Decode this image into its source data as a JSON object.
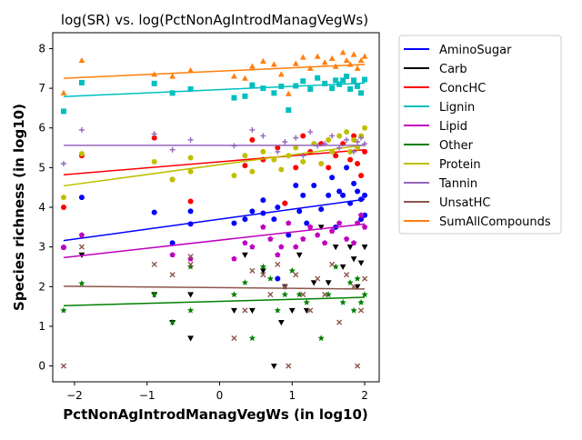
{
  "chart_data": {
    "type": "scatter",
    "title": "log(SR) vs. log(PctNonAgIntrodManagVegWs)",
    "xlabel": "PctNonAgIntrodManagVegWs (in log10)",
    "ylabel": "Species richness (in log10)",
    "xlim": [
      -2.3,
      2.2
    ],
    "ylim": [
      -0.4,
      8.4
    ],
    "xticks": [
      -2,
      -1,
      0,
      1,
      2
    ],
    "yticks": [
      0,
      1,
      2,
      3,
      4,
      5,
      6,
      7,
      8
    ],
    "grid": false,
    "legend_position": "outside-right",
    "series": [
      {
        "name": "AminoSugar",
        "color": "#0000ff",
        "marker": "circle",
        "fit": [
          3.16,
          4.2
        ],
        "points": [
          [
            -2.15,
            2.99
          ],
          [
            -1.9,
            4.25
          ],
          [
            -0.9,
            3.87
          ],
          [
            -0.65,
            3.1
          ],
          [
            -0.4,
            3.58
          ],
          [
            -0.4,
            3.9
          ],
          [
            0.2,
            3.6
          ],
          [
            0.35,
            3.7
          ],
          [
            0.45,
            3.9
          ],
          [
            0.6,
            3.85
          ],
          [
            0.6,
            4.18
          ],
          [
            0.75,
            3.7
          ],
          [
            0.8,
            4.0
          ],
          [
            0.8,
            2.2
          ],
          [
            0.9,
            4.1
          ],
          [
            0.95,
            3.3
          ],
          [
            1.05,
            4.55
          ],
          [
            1.1,
            3.9
          ],
          [
            1.15,
            4.3
          ],
          [
            1.2,
            3.6
          ],
          [
            1.3,
            4.55
          ],
          [
            1.4,
            3.95
          ],
          [
            1.5,
            4.3
          ],
          [
            1.55,
            4.75
          ],
          [
            1.6,
            3.5
          ],
          [
            1.65,
            4.4
          ],
          [
            1.7,
            4.3
          ],
          [
            1.75,
            5.0
          ],
          [
            1.8,
            4.1
          ],
          [
            1.85,
            4.6
          ],
          [
            1.9,
            4.4
          ],
          [
            1.95,
            3.7
          ],
          [
            1.95,
            4.2
          ],
          [
            2.0,
            3.8
          ],
          [
            2.0,
            4.3
          ]
        ]
      },
      {
        "name": "Carb",
        "color": "#000000",
        "marker": "triangle-down",
        "fit": [
          null,
          null
        ],
        "points": [
          [
            -1.9,
            2.8
          ],
          [
            -0.9,
            1.8
          ],
          [
            -0.65,
            1.1
          ],
          [
            -0.4,
            1.8
          ],
          [
            -0.4,
            0.7
          ],
          [
            0.2,
            1.4
          ],
          [
            0.35,
            2.8
          ],
          [
            0.45,
            1.4
          ],
          [
            0.6,
            2.4
          ],
          [
            0.75,
            0.0
          ],
          [
            0.85,
            1.1
          ],
          [
            0.9,
            2.0
          ],
          [
            1.0,
            1.4
          ],
          [
            1.1,
            2.8
          ],
          [
            1.2,
            1.4
          ],
          [
            1.3,
            2.1
          ],
          [
            1.4,
            3.5
          ],
          [
            1.5,
            2.1
          ],
          [
            1.6,
            3.0
          ],
          [
            1.7,
            2.5
          ],
          [
            1.8,
            3.0
          ],
          [
            1.85,
            2.7
          ],
          [
            1.9,
            2.0
          ],
          [
            1.95,
            2.6
          ],
          [
            2.0,
            3.0
          ]
        ]
      },
      {
        "name": "ConcHC",
        "color": "#ff0000",
        "marker": "circle",
        "fit": [
          4.82,
          5.45
        ],
        "points": [
          [
            -2.15,
            4.0
          ],
          [
            -1.9,
            5.3
          ],
          [
            -0.9,
            5.75
          ],
          [
            -0.65,
            4.7
          ],
          [
            -0.4,
            4.15
          ],
          [
            0.35,
            5.05
          ],
          [
            0.45,
            5.7
          ],
          [
            0.6,
            5.2
          ],
          [
            0.8,
            5.5
          ],
          [
            0.9,
            4.1
          ],
          [
            1.05,
            5.0
          ],
          [
            1.15,
            5.8
          ],
          [
            1.25,
            5.4
          ],
          [
            1.4,
            5.6
          ],
          [
            1.5,
            5.0
          ],
          [
            1.6,
            5.3
          ],
          [
            1.7,
            5.6
          ],
          [
            1.8,
            5.2
          ],
          [
            1.85,
            5.8
          ],
          [
            1.9,
            5.1
          ],
          [
            1.95,
            4.8
          ],
          [
            2.0,
            5.4
          ]
        ]
      },
      {
        "name": "Lignin",
        "color": "#00bfbf",
        "marker": "square",
        "fit": [
          6.79,
          7.13
        ],
        "points": [
          [
            -2.15,
            6.42
          ],
          [
            -1.9,
            7.14
          ],
          [
            -0.9,
            7.12
          ],
          [
            -0.65,
            6.88
          ],
          [
            -0.4,
            6.98
          ],
          [
            0.2,
            6.76
          ],
          [
            0.35,
            6.8
          ],
          [
            0.45,
            7.08
          ],
          [
            0.6,
            7.0
          ],
          [
            0.75,
            6.88
          ],
          [
            0.85,
            7.05
          ],
          [
            0.95,
            6.45
          ],
          [
            1.05,
            7.06
          ],
          [
            1.15,
            7.18
          ],
          [
            1.25,
            6.98
          ],
          [
            1.35,
            7.26
          ],
          [
            1.45,
            7.12
          ],
          [
            1.55,
            7.0
          ],
          [
            1.6,
            7.2
          ],
          [
            1.65,
            7.1
          ],
          [
            1.7,
            7.2
          ],
          [
            1.75,
            7.3
          ],
          [
            1.8,
            6.98
          ],
          [
            1.85,
            7.2
          ],
          [
            1.9,
            7.05
          ],
          [
            1.95,
            6.88
          ],
          [
            2.0,
            7.22
          ]
        ]
      },
      {
        "name": "Lipid",
        "color": "#bf00bf",
        "marker": "pentagon",
        "fit": [
          2.73,
          3.58
        ],
        "points": [
          [
            -2.15,
            2.99
          ],
          [
            -1.9,
            3.3
          ],
          [
            -0.65,
            2.8
          ],
          [
            -0.4,
            2.7
          ],
          [
            0.2,
            2.7
          ],
          [
            0.35,
            3.1
          ],
          [
            0.45,
            3.0
          ],
          [
            0.6,
            3.5
          ],
          [
            0.7,
            3.2
          ],
          [
            0.8,
            2.8
          ],
          [
            0.85,
            3.0
          ],
          [
            0.95,
            3.6
          ],
          [
            1.05,
            3.0
          ],
          [
            1.15,
            3.2
          ],
          [
            1.25,
            3.5
          ],
          [
            1.35,
            3.3
          ],
          [
            1.45,
            3.1
          ],
          [
            1.55,
            3.4
          ],
          [
            1.65,
            3.6
          ],
          [
            1.75,
            3.2
          ],
          [
            1.85,
            3.1
          ],
          [
            1.9,
            3.6
          ],
          [
            1.95,
            3.8
          ],
          [
            2.0,
            3.5
          ]
        ]
      },
      {
        "name": "Other",
        "color": "#008000",
        "marker": "star",
        "fit": [
          1.52,
          1.73
        ],
        "points": [
          [
            -2.15,
            1.4
          ],
          [
            -1.9,
            2.08
          ],
          [
            -0.9,
            1.8
          ],
          [
            -0.65,
            1.1
          ],
          [
            -0.4,
            1.4
          ],
          [
            -0.4,
            2.5
          ],
          [
            0.2,
            1.8
          ],
          [
            0.35,
            2.1
          ],
          [
            0.45,
            0.7
          ],
          [
            0.6,
            2.5
          ],
          [
            0.7,
            2.2
          ],
          [
            0.8,
            1.4
          ],
          [
            0.9,
            1.8
          ],
          [
            1.0,
            2.4
          ],
          [
            1.1,
            1.8
          ],
          [
            1.2,
            1.6
          ],
          [
            1.4,
            0.7
          ],
          [
            1.5,
            1.8
          ],
          [
            1.6,
            2.5
          ],
          [
            1.7,
            1.6
          ],
          [
            1.8,
            2.1
          ],
          [
            1.85,
            1.4
          ],
          [
            1.9,
            2.2
          ],
          [
            1.95,
            1.6
          ],
          [
            2.0,
            1.8
          ]
        ]
      },
      {
        "name": "Protein",
        "color": "#bfbf00",
        "marker": "circle",
        "fit": [
          4.54,
          5.57
        ],
        "points": [
          [
            -2.15,
            4.25
          ],
          [
            -1.9,
            5.35
          ],
          [
            -0.9,
            5.15
          ],
          [
            -0.65,
            4.7
          ],
          [
            -0.4,
            5.25
          ],
          [
            -0.4,
            4.9
          ],
          [
            0.2,
            4.8
          ],
          [
            0.35,
            5.3
          ],
          [
            0.45,
            4.9
          ],
          [
            0.6,
            5.4
          ],
          [
            0.75,
            5.2
          ],
          [
            0.85,
            4.95
          ],
          [
            0.95,
            5.3
          ],
          [
            1.05,
            5.5
          ],
          [
            1.15,
            5.15
          ],
          [
            1.3,
            5.6
          ],
          [
            1.4,
            5.1
          ],
          [
            1.5,
            5.7
          ],
          [
            1.55,
            5.4
          ],
          [
            1.65,
            5.8
          ],
          [
            1.75,
            5.9
          ],
          [
            1.8,
            5.4
          ],
          [
            1.85,
            5.7
          ],
          [
            1.9,
            5.5
          ],
          [
            1.95,
            5.8
          ],
          [
            2.0,
            6.0
          ]
        ]
      },
      {
        "name": "Tannin",
        "color": "#9467bd",
        "marker": "plus",
        "fit": [
          5.56,
          5.56
        ],
        "points": [
          [
            -2.15,
            5.1
          ],
          [
            -1.9,
            5.95
          ],
          [
            -0.9,
            5.85
          ],
          [
            -0.65,
            5.45
          ],
          [
            -0.4,
            5.7
          ],
          [
            0.2,
            5.55
          ],
          [
            0.45,
            5.95
          ],
          [
            0.6,
            5.8
          ],
          [
            0.8,
            5.4
          ],
          [
            0.9,
            5.65
          ],
          [
            1.05,
            5.75
          ],
          [
            1.15,
            5.3
          ],
          [
            1.25,
            5.9
          ],
          [
            1.35,
            5.55
          ],
          [
            1.45,
            5.6
          ],
          [
            1.55,
            5.8
          ],
          [
            1.65,
            5.5
          ],
          [
            1.75,
            5.7
          ],
          [
            1.85,
            5.4
          ],
          [
            1.9,
            5.65
          ],
          [
            1.95,
            5.75
          ],
          [
            2.0,
            5.6
          ]
        ]
      },
      {
        "name": "UnsatHC",
        "color": "#8c564b",
        "marker": "x",
        "fit": [
          2.01,
          1.94
        ],
        "points": [
          [
            -2.15,
            0.0
          ],
          [
            -1.9,
            3.0
          ],
          [
            -0.9,
            2.56
          ],
          [
            -0.65,
            2.3
          ],
          [
            -0.4,
            2.56
          ],
          [
            -0.4,
            2.76
          ],
          [
            0.2,
            0.7
          ],
          [
            0.35,
            1.4
          ],
          [
            0.45,
            2.4
          ],
          [
            0.6,
            2.3
          ],
          [
            0.7,
            1.8
          ],
          [
            0.8,
            2.56
          ],
          [
            0.9,
            2.0
          ],
          [
            0.95,
            0.0
          ],
          [
            1.05,
            2.3
          ],
          [
            1.15,
            1.8
          ],
          [
            1.25,
            1.4
          ],
          [
            1.35,
            2.2
          ],
          [
            1.45,
            1.8
          ],
          [
            1.55,
            2.56
          ],
          [
            1.65,
            1.1
          ],
          [
            1.75,
            2.3
          ],
          [
            1.85,
            2.0
          ],
          [
            1.9,
            0.0
          ],
          [
            1.95,
            1.4
          ],
          [
            2.0,
            2.2
          ]
        ]
      },
      {
        "name": "SumAllCompounds",
        "color": "#ff7f0e",
        "marker": "triangle-up",
        "fit": [
          7.25,
          7.6
        ],
        "points": [
          [
            -2.15,
            6.88
          ],
          [
            -1.9,
            7.7
          ],
          [
            -0.9,
            7.35
          ],
          [
            -0.65,
            7.3
          ],
          [
            -0.4,
            7.45
          ],
          [
            0.2,
            7.3
          ],
          [
            0.35,
            7.25
          ],
          [
            0.45,
            7.55
          ],
          [
            0.6,
            7.68
          ],
          [
            0.75,
            7.6
          ],
          [
            0.85,
            7.35
          ],
          [
            0.95,
            6.86
          ],
          [
            1.05,
            7.62
          ],
          [
            1.15,
            7.78
          ],
          [
            1.25,
            7.5
          ],
          [
            1.35,
            7.8
          ],
          [
            1.45,
            7.65
          ],
          [
            1.55,
            7.75
          ],
          [
            1.6,
            7.55
          ],
          [
            1.7,
            7.9
          ],
          [
            1.75,
            7.7
          ],
          [
            1.8,
            7.6
          ],
          [
            1.85,
            7.85
          ],
          [
            1.9,
            7.5
          ],
          [
            1.95,
            7.7
          ],
          [
            2.0,
            7.8
          ]
        ]
      }
    ]
  }
}
